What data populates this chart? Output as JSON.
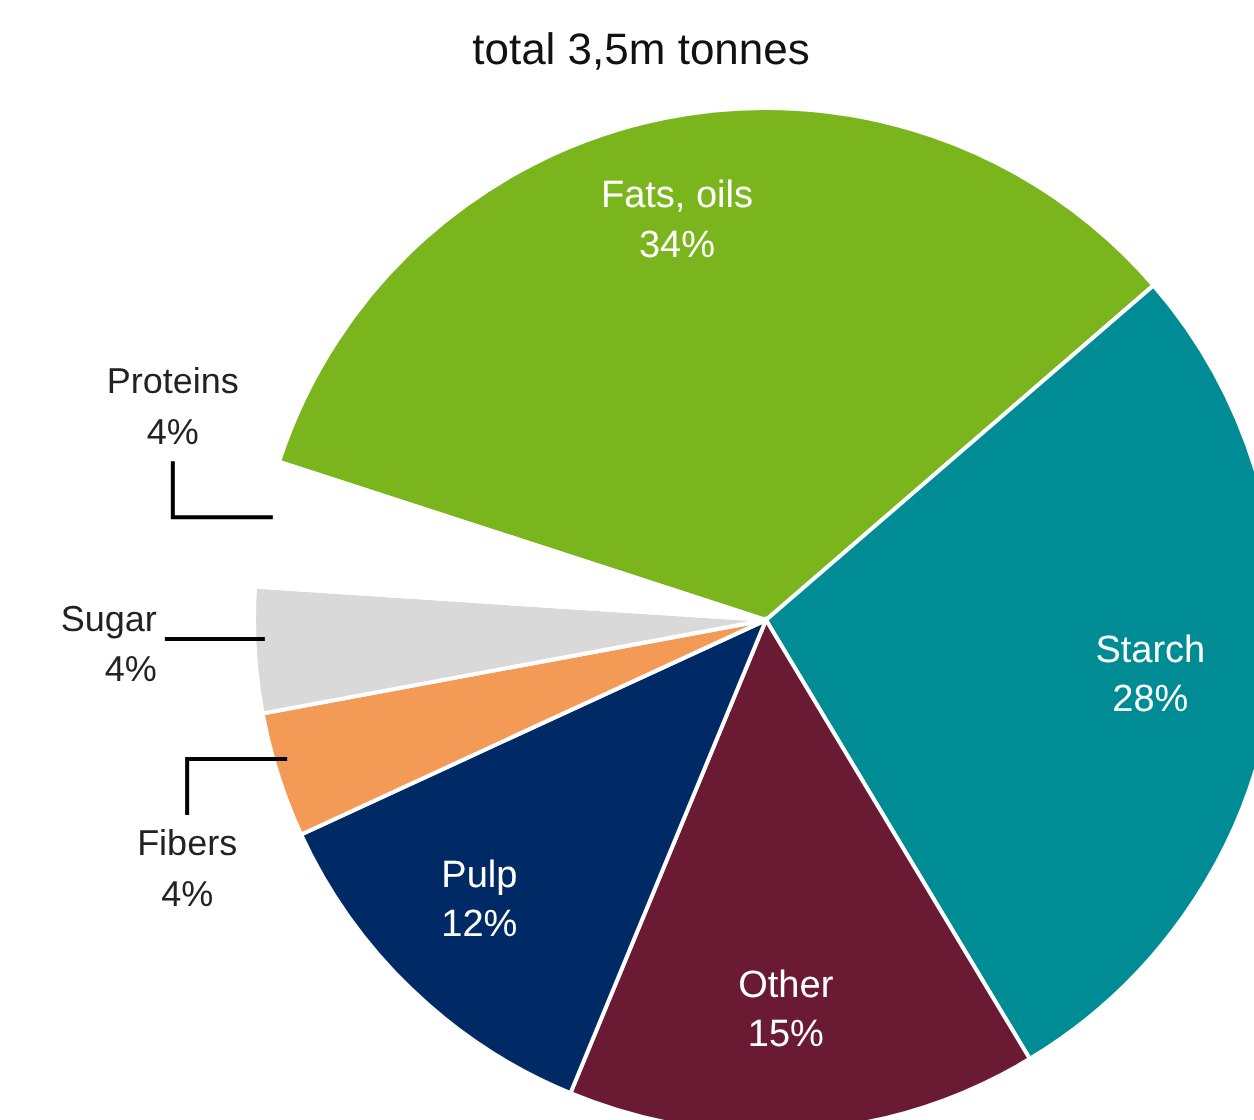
{
  "chart_data": {
    "type": "pie",
    "title": "total 3,5m tonnes",
    "categories": [
      "Fats, oils",
      "Starch",
      "Other",
      "Pulp",
      "Fibers",
      "Sugar",
      "Proteins"
    ],
    "values": [
      34,
      28,
      15,
      12,
      4,
      4,
      4
    ],
    "value_labels": [
      "34%",
      "28%",
      "15%",
      "12%",
      "4%",
      "4%",
      "4%"
    ],
    "colors": [
      "#7ab51d",
      "#008c95",
      "#6b1a33",
      "#002a66",
      "#f39a57",
      "#d9d9d9",
      "#ffffff"
    ]
  }
}
